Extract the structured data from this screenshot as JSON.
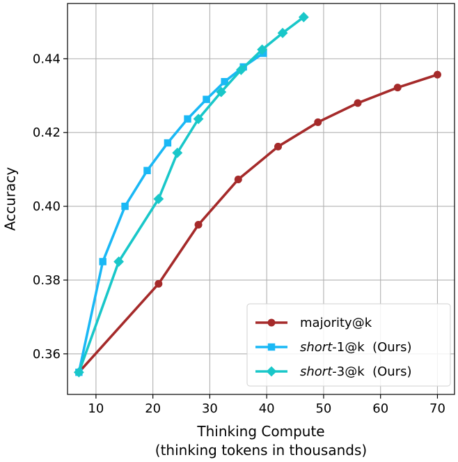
{
  "chart_data": {
    "type": "line",
    "xlabel": "Thinking Compute",
    "xlabel_line2": "(thinking tokens in thousands)",
    "ylabel": "Accuracy",
    "xlim": [
      5,
      73
    ],
    "ylim": [
      0.349,
      0.455
    ],
    "xticks": [
      10,
      20,
      30,
      40,
      50,
      60,
      70
    ],
    "yticks": [
      0.36,
      0.38,
      0.4,
      0.42,
      0.44
    ],
    "ytick_labels": [
      "0.36",
      "0.38",
      "0.40",
      "0.42",
      "0.44"
    ],
    "grid": true,
    "legend_position": "lower-right",
    "series": [
      {
        "name": "majority@k",
        "name_parts": [
          {
            "text": "majority@k",
            "italic": false
          }
        ],
        "color": "#a52a2a",
        "marker": "circle",
        "x": [
          7,
          21,
          28,
          35,
          42,
          49,
          56,
          63,
          70
        ],
        "y": [
          0.355,
          0.379,
          0.395,
          0.4073,
          0.4162,
          0.4228,
          0.428,
          0.4322,
          0.4357
        ]
      },
      {
        "name": "short-1@k (Ours)",
        "name_parts": [
          {
            "text": "short",
            "italic": true
          },
          {
            "text": "-1@k  (Ours)",
            "italic": false
          }
        ],
        "color": "#1ab8f5",
        "marker": "square",
        "x": [
          7,
          11.2,
          15.1,
          19,
          22.6,
          26.1,
          29.4,
          32.6,
          35.9,
          39.4
        ],
        "y": [
          0.355,
          0.385,
          0.4,
          0.4097,
          0.4172,
          0.4237,
          0.429,
          0.4338,
          0.4378,
          0.4415
        ]
      },
      {
        "name": "short-3@k (Ours)",
        "name_parts": [
          {
            "text": "short",
            "italic": true
          },
          {
            "text": "-3@k  (Ours)",
            "italic": false
          }
        ],
        "color": "#19c7c9",
        "marker": "diamond",
        "x": [
          7,
          14,
          21,
          24.3,
          28,
          32,
          35.5,
          39.2,
          42.8,
          46.5
        ],
        "y": [
          0.355,
          0.385,
          0.402,
          0.4145,
          0.4237,
          0.431,
          0.437,
          0.4425,
          0.447,
          0.4513
        ]
      }
    ]
  }
}
